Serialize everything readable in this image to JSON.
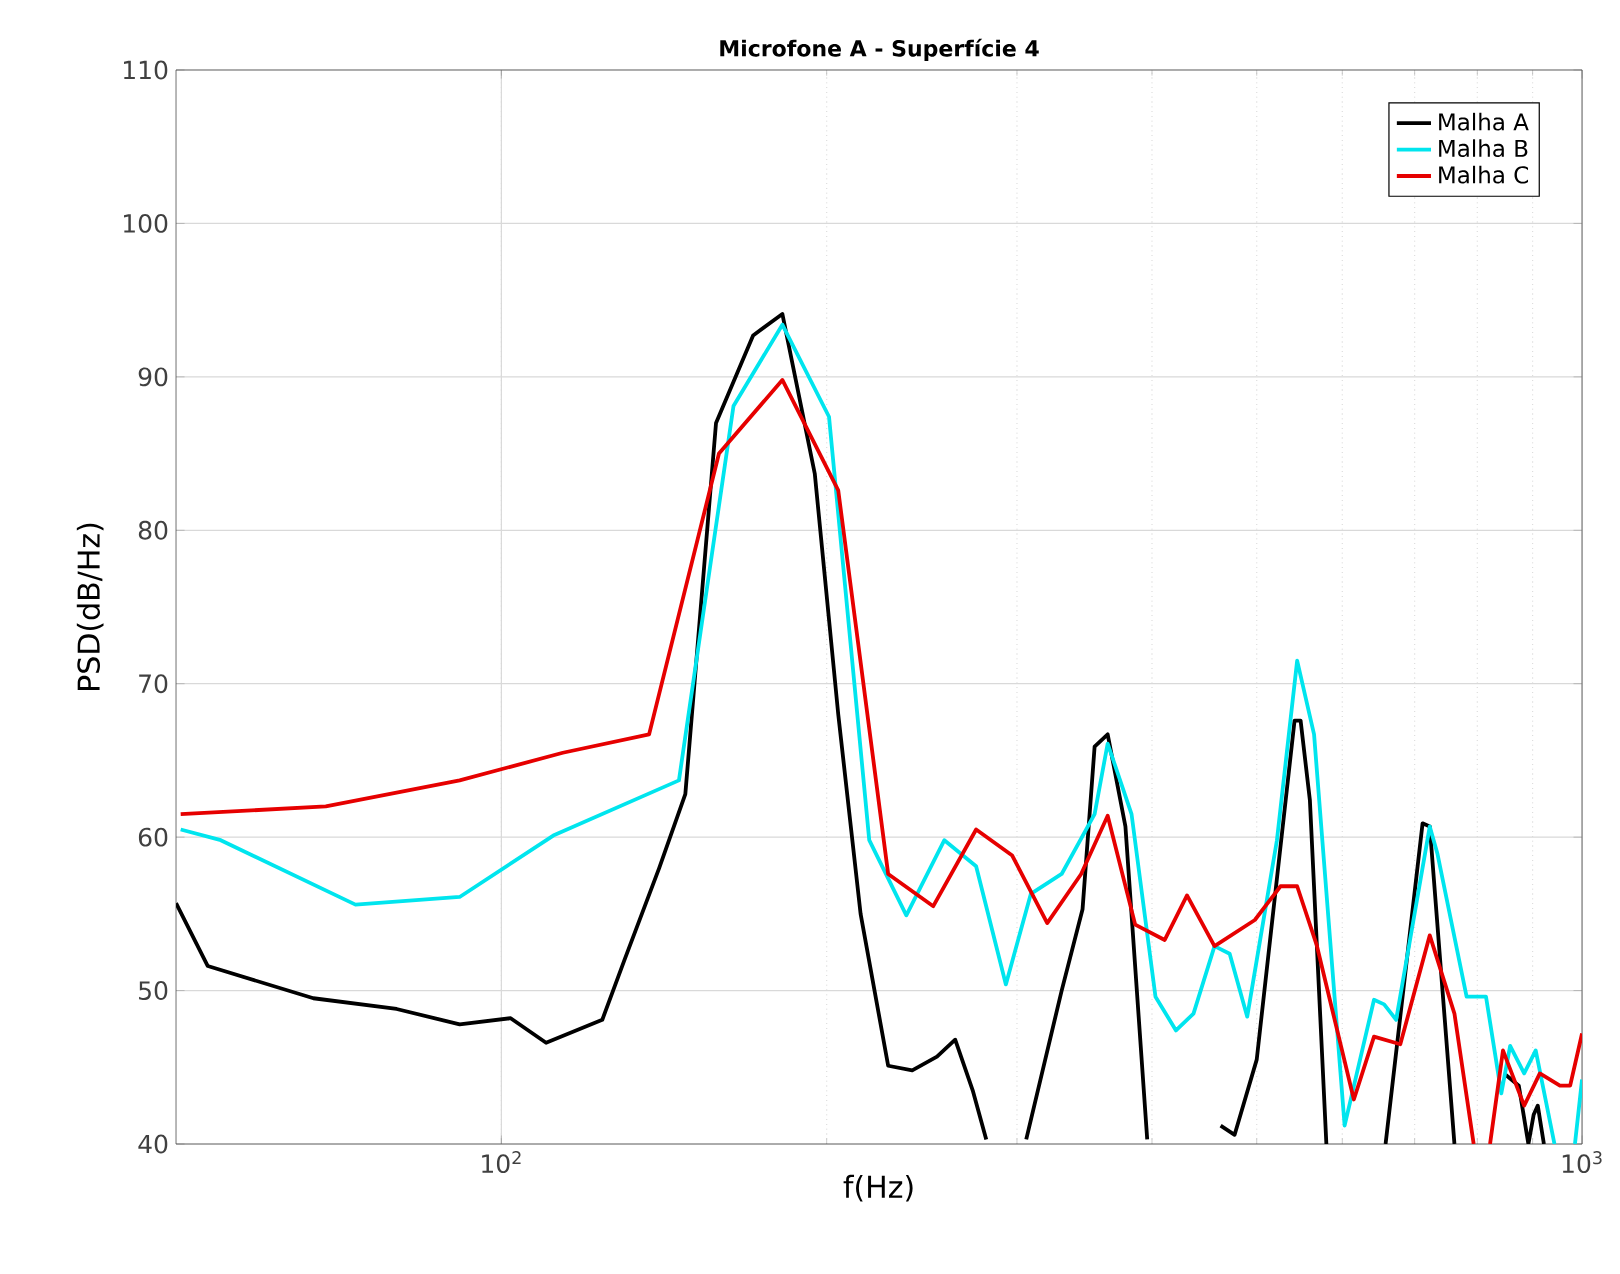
{
  "chart_data": {
    "type": "line",
    "title": "Microfone A - Superfície 4",
    "xlabel": "f(Hz)",
    "ylabel": "PSD(dB/Hz)",
    "log": "x",
    "grid": true,
    "legend": "top right",
    "marker": "none",
    "line_style": "solid",
    "xlim": [
      50,
      1000
    ],
    "ylim": [
      40,
      110
    ],
    "xticks": [
      {
        "value": 100,
        "label": "10$^{2}$"
      },
      {
        "value": 1000,
        "label": "10$^{3}$"
      }
    ],
    "yticks": [
      40,
      50,
      60,
      70,
      80,
      90,
      100,
      110
    ],
    "series": [
      {
        "name": "Malha A",
        "color": "#000000",
        "x": [
          50,
          53.5,
          67,
          80,
          91.5,
          102,
          110,
          124,
          130,
          140,
          148,
          158,
          171,
          182,
          195,
          205,
          215,
          228,
          240,
          253,
          263,
          273,
          281,
          295,
          306,
          330,
          345,
          354,
          364,
          378,
          396,
          430,
          463,
          477,
          500,
          542,
          549,
          560,
          580,
          620,
          658,
          712,
          723,
          762,
          800,
          847,
          874,
          892,
          902,
          910,
          922
        ],
        "values": [
          55.7,
          51.6,
          49.5,
          48.8,
          47.8,
          48.2,
          46.6,
          48.1,
          52,
          58,
          62.8,
          87,
          92.7,
          94.1,
          83.7,
          68,
          55,
          45.1,
          44.8,
          45.7,
          46.8,
          43.5,
          40.3,
          null,
          40.3,
          50,
          55.3,
          65.9,
          66.7,
          60.7,
          40.3,
          null,
          41.2,
          40.6,
          45.5,
          67.6,
          67.6,
          62.4,
          40,
          null,
          40,
          60.9,
          60.7,
          40,
          null,
          44.6,
          43.8,
          40,
          41.9,
          42.5,
          40
        ]
      },
      {
        "name": "Malha B",
        "color": "#00e5ee",
        "x": [
          50.5,
          55,
          73.3,
          91.5,
          111.7,
          146,
          164,
          182,
          201,
          219,
          237,
          257,
          275,
          293,
          309,
          330,
          354,
          364,
          383,
          403,
          421,
          437,
          457,
          472,
          490,
          522,
          545,
          565,
          603,
          642,
          656,
          673,
          723,
          735,
          782,
          815,
          842,
          858,
          884,
          906,
          943,
          965,
          985,
          1000
        ],
        "values": [
          60.5,
          59.8,
          55.6,
          56.1,
          60.1,
          63.7,
          88.1,
          93.4,
          87.4,
          59.8,
          54.9,
          59.8,
          58.1,
          50.4,
          56.3,
          57.6,
          61.5,
          66.1,
          61.5,
          49.6,
          47.4,
          48.5,
          52.9,
          52.4,
          48.3,
          59.8,
          71.5,
          66.7,
          41.2,
          49.4,
          49.1,
          48.1,
          60.7,
          58.9,
          49.6,
          49.6,
          43.3,
          46.4,
          44.6,
          46.1,
          40,
          null,
          40,
          44.2
        ]
      },
      {
        "name": "Malha C",
        "color": "#e60000",
        "x": [
          50.5,
          68.8,
          91.5,
          114,
          137,
          159,
          182,
          205,
          228,
          251,
          275,
          297,
          320,
          344,
          364,
          386,
          411,
          431,
          457,
          498,
          526,
          545,
          568,
          615,
          642,
          679,
          723,
          762,
          794,
          808,
          822,
          845,
          884,
          914,
          954,
          975,
          1000
        ],
        "values": [
          61.5,
          62,
          63.7,
          65.5,
          66.7,
          85,
          89.8,
          82.6,
          57.6,
          55.5,
          60.5,
          58.8,
          54.4,
          57.6,
          61.4,
          54.3,
          53.3,
          56.2,
          52.9,
          54.6,
          56.8,
          56.8,
          53,
          42.9,
          47,
          46.5,
          53.6,
          48.5,
          40,
          null,
          40,
          46.1,
          42.5,
          44.6,
          43.8,
          43.8,
          47.2
        ]
      }
    ]
  }
}
